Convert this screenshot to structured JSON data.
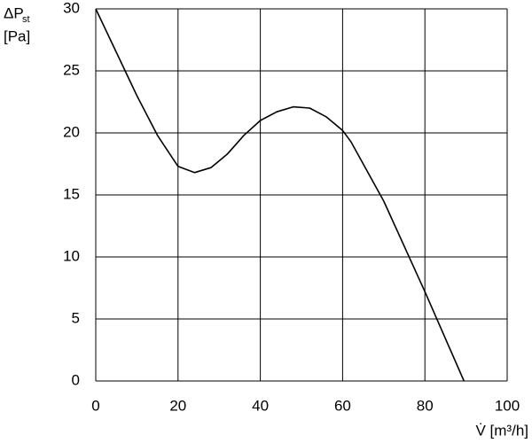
{
  "chart_data": {
    "type": "line",
    "y_label": {
      "symbol": "ΔP",
      "subscript": "st",
      "unit": "[Pa]"
    },
    "x_label": "V̇ [m³/h]",
    "x": [
      0,
      5,
      10,
      15,
      20,
      24,
      28,
      32,
      36,
      40,
      44,
      48,
      52,
      56,
      60,
      62,
      70,
      80,
      89.5
    ],
    "series": [
      {
        "color": "#000000",
        "values": [
          30,
          26.5,
          23,
          19.8,
          17.3,
          16.8,
          17.2,
          18.3,
          19.8,
          21,
          21.7,
          22.1,
          22,
          21.3,
          20.2,
          19.3,
          14.5,
          7.2,
          0
        ]
      }
    ],
    "xlim": [
      0,
      100
    ],
    "xticks": [
      0,
      20,
      40,
      60,
      80,
      100
    ],
    "ylim": [
      0,
      30
    ],
    "yticks": [
      0,
      5,
      10,
      15,
      20,
      25,
      30
    ],
    "grid": true
  }
}
